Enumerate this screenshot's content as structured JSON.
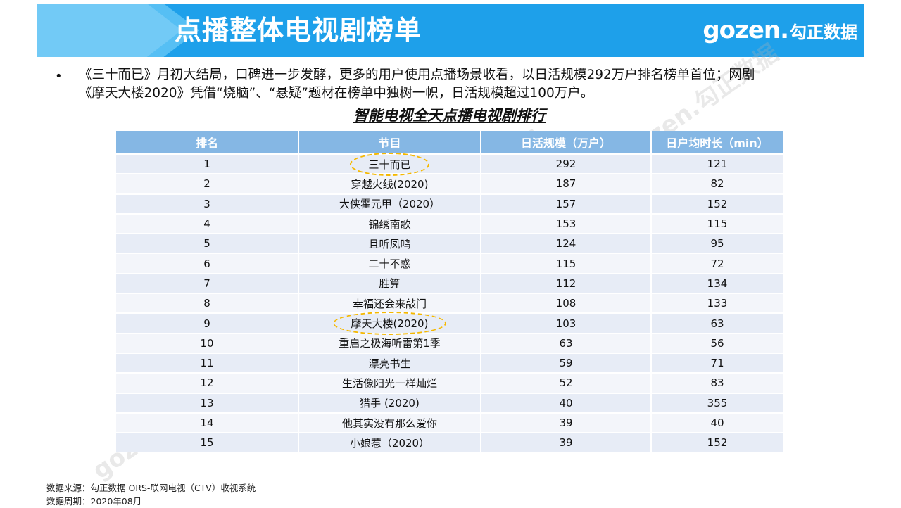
{
  "header": {
    "title": "点播整体电视剧榜单",
    "logo_word": "gozen.",
    "logo_cn": "勾正数据",
    "bar_color": "#1ea0ea"
  },
  "description": {
    "line1": "《三十而已》月初大结局，口碑进一步发酵，更多的用户使用点播场景收看，以日活规模292万户排名榜单首位；网剧",
    "line2": "《摩天大楼2020》凭借“烧脑”、“悬疑”题材在榜单中独树一帜，日活规模超过100万户。"
  },
  "table": {
    "title": "智能电视全天点播电视剧排行",
    "columns": [
      "排名",
      "节目",
      "日活规模（万户）",
      "日户均时长（min）"
    ],
    "rows": [
      {
        "rank": "1",
        "program": "三十而已",
        "dau": "292",
        "duration": "121",
        "highlight": true
      },
      {
        "rank": "2",
        "program": "穿越火线(2020)",
        "dau": "187",
        "duration": "82"
      },
      {
        "rank": "3",
        "program": "大侠霍元甲（2020）",
        "dau": "157",
        "duration": "152"
      },
      {
        "rank": "4",
        "program": "锦绣南歌",
        "dau": "153",
        "duration": "115"
      },
      {
        "rank": "5",
        "program": "且听凤鸣",
        "dau": "124",
        "duration": "95"
      },
      {
        "rank": "6",
        "program": "二十不惑",
        "dau": "115",
        "duration": "72"
      },
      {
        "rank": "7",
        "program": "胜算",
        "dau": "112",
        "duration": "134"
      },
      {
        "rank": "8",
        "program": "幸福还会来敲门",
        "dau": "108",
        "duration": "133"
      },
      {
        "rank": "9",
        "program": "摩天大楼(2020)",
        "dau": "103",
        "duration": "63",
        "highlight": true
      },
      {
        "rank": "10",
        "program": "重启之极海听雷第1季",
        "dau": "63",
        "duration": "56"
      },
      {
        "rank": "11",
        "program": "漂亮书生",
        "dau": "59",
        "duration": "71"
      },
      {
        "rank": "12",
        "program": "生活像阳光一样灿烂",
        "dau": "52",
        "duration": "83"
      },
      {
        "rank": "13",
        "program": "猎手 (2020)",
        "dau": "40",
        "duration": "355"
      },
      {
        "rank": "14",
        "program": "他其实没有那么爱你",
        "dau": "39",
        "duration": "40"
      },
      {
        "rank": "15",
        "program": "小娘惹（2020）",
        "dau": "39",
        "duration": "152"
      }
    ],
    "header_color": "#85b7e4",
    "highlight_color": "#f5b800"
  },
  "watermark": "gozen.勾正数据",
  "footer": {
    "source": "数据来源：勾正数据 ORS-联网电视（CTV）收视系统",
    "period": "数据周期：2020年08月"
  }
}
